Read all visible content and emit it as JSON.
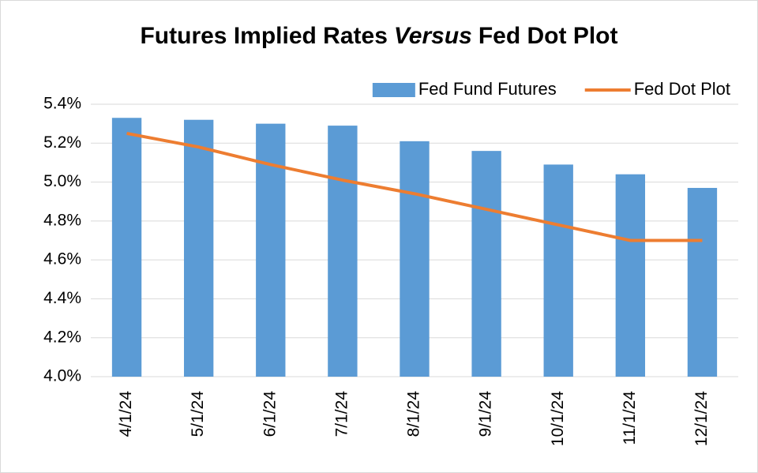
{
  "chart_data": {
    "type": "bar",
    "title": [
      "Futures Implied Rates",
      "Versus",
      "Fed Dot Plot"
    ],
    "categories": [
      "4/1/24",
      "5/1/24",
      "6/1/24",
      "7/1/24",
      "8/1/24",
      "9/1/24",
      "10/1/24",
      "11/1/24",
      "12/1/24"
    ],
    "series": [
      {
        "name": "Fed Fund Futures",
        "type": "bar",
        "color": "#5b9bd5",
        "values": [
          5.33,
          5.32,
          5.3,
          5.29,
          5.21,
          5.16,
          5.09,
          5.04,
          4.97
        ]
      },
      {
        "name": "Fed Dot Plot",
        "type": "line",
        "color": "#ed7d31",
        "values": [
          5.25,
          5.18,
          5.09,
          5.01,
          4.94,
          4.86,
          4.78,
          4.7,
          4.7
        ]
      }
    ],
    "ylim": [
      4.0,
      5.4
    ],
    "yticks": [
      {
        "value": 4.0,
        "label": "4.0%"
      },
      {
        "value": 4.2,
        "label": "4.2%"
      },
      {
        "value": 4.4,
        "label": "4.4%"
      },
      {
        "value": 4.6,
        "label": "4.6%"
      },
      {
        "value": 4.8,
        "label": "4.8%"
      },
      {
        "value": 5.0,
        "label": "5.0%"
      },
      {
        "value": 5.2,
        "label": "5.2%"
      },
      {
        "value": 5.4,
        "label": "5.4%"
      }
    ],
    "grid": true,
    "legend": "top-right"
  }
}
